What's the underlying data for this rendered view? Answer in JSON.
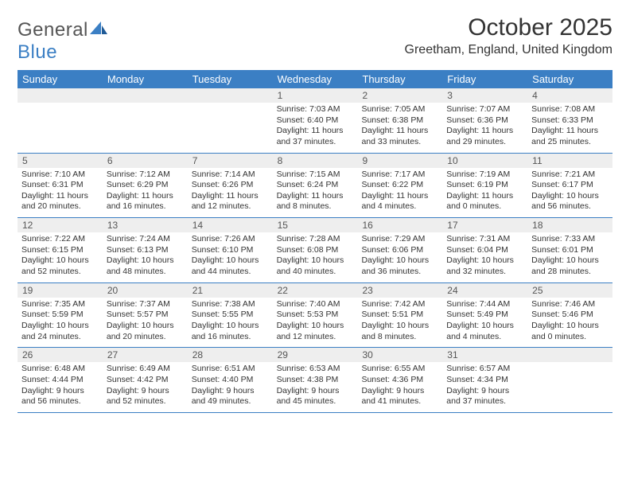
{
  "logo": {
    "word1": "General",
    "word2": "Blue"
  },
  "title": "October 2025",
  "location": "Greetham, England, United Kingdom",
  "colors": {
    "header_bg": "#3b7fc4",
    "header_text": "#ffffff",
    "daynum_bg": "#eeeeee",
    "border": "#3b7fc4",
    "text": "#333333",
    "logo_gray": "#555555",
    "logo_blue": "#3b7fc4",
    "page_bg": "#ffffff"
  },
  "day_names": [
    "Sunday",
    "Monday",
    "Tuesday",
    "Wednesday",
    "Thursday",
    "Friday",
    "Saturday"
  ],
  "weeks": [
    {
      "nums": [
        "",
        "",
        "",
        "1",
        "2",
        "3",
        "4"
      ],
      "info": [
        "",
        "",
        "",
        "Sunrise: 7:03 AM\nSunset: 6:40 PM\nDaylight: 11 hours and 37 minutes.",
        "Sunrise: 7:05 AM\nSunset: 6:38 PM\nDaylight: 11 hours and 33 minutes.",
        "Sunrise: 7:07 AM\nSunset: 6:36 PM\nDaylight: 11 hours and 29 minutes.",
        "Sunrise: 7:08 AM\nSunset: 6:33 PM\nDaylight: 11 hours and 25 minutes."
      ]
    },
    {
      "nums": [
        "5",
        "6",
        "7",
        "8",
        "9",
        "10",
        "11"
      ],
      "info": [
        "Sunrise: 7:10 AM\nSunset: 6:31 PM\nDaylight: 11 hours and 20 minutes.",
        "Sunrise: 7:12 AM\nSunset: 6:29 PM\nDaylight: 11 hours and 16 minutes.",
        "Sunrise: 7:14 AM\nSunset: 6:26 PM\nDaylight: 11 hours and 12 minutes.",
        "Sunrise: 7:15 AM\nSunset: 6:24 PM\nDaylight: 11 hours and 8 minutes.",
        "Sunrise: 7:17 AM\nSunset: 6:22 PM\nDaylight: 11 hours and 4 minutes.",
        "Sunrise: 7:19 AM\nSunset: 6:19 PM\nDaylight: 11 hours and 0 minutes.",
        "Sunrise: 7:21 AM\nSunset: 6:17 PM\nDaylight: 10 hours and 56 minutes."
      ]
    },
    {
      "nums": [
        "12",
        "13",
        "14",
        "15",
        "16",
        "17",
        "18"
      ],
      "info": [
        "Sunrise: 7:22 AM\nSunset: 6:15 PM\nDaylight: 10 hours and 52 minutes.",
        "Sunrise: 7:24 AM\nSunset: 6:13 PM\nDaylight: 10 hours and 48 minutes.",
        "Sunrise: 7:26 AM\nSunset: 6:10 PM\nDaylight: 10 hours and 44 minutes.",
        "Sunrise: 7:28 AM\nSunset: 6:08 PM\nDaylight: 10 hours and 40 minutes.",
        "Sunrise: 7:29 AM\nSunset: 6:06 PM\nDaylight: 10 hours and 36 minutes.",
        "Sunrise: 7:31 AM\nSunset: 6:04 PM\nDaylight: 10 hours and 32 minutes.",
        "Sunrise: 7:33 AM\nSunset: 6:01 PM\nDaylight: 10 hours and 28 minutes."
      ]
    },
    {
      "nums": [
        "19",
        "20",
        "21",
        "22",
        "23",
        "24",
        "25"
      ],
      "info": [
        "Sunrise: 7:35 AM\nSunset: 5:59 PM\nDaylight: 10 hours and 24 minutes.",
        "Sunrise: 7:37 AM\nSunset: 5:57 PM\nDaylight: 10 hours and 20 minutes.",
        "Sunrise: 7:38 AM\nSunset: 5:55 PM\nDaylight: 10 hours and 16 minutes.",
        "Sunrise: 7:40 AM\nSunset: 5:53 PM\nDaylight: 10 hours and 12 minutes.",
        "Sunrise: 7:42 AM\nSunset: 5:51 PM\nDaylight: 10 hours and 8 minutes.",
        "Sunrise: 7:44 AM\nSunset: 5:49 PM\nDaylight: 10 hours and 4 minutes.",
        "Sunrise: 7:46 AM\nSunset: 5:46 PM\nDaylight: 10 hours and 0 minutes."
      ]
    },
    {
      "nums": [
        "26",
        "27",
        "28",
        "29",
        "30",
        "31",
        ""
      ],
      "info": [
        "Sunrise: 6:48 AM\nSunset: 4:44 PM\nDaylight: 9 hours and 56 minutes.",
        "Sunrise: 6:49 AM\nSunset: 4:42 PM\nDaylight: 9 hours and 52 minutes.",
        "Sunrise: 6:51 AM\nSunset: 4:40 PM\nDaylight: 9 hours and 49 minutes.",
        "Sunrise: 6:53 AM\nSunset: 4:38 PM\nDaylight: 9 hours and 45 minutes.",
        "Sunrise: 6:55 AM\nSunset: 4:36 PM\nDaylight: 9 hours and 41 minutes.",
        "Sunrise: 6:57 AM\nSunset: 4:34 PM\nDaylight: 9 hours and 37 minutes.",
        ""
      ]
    }
  ]
}
